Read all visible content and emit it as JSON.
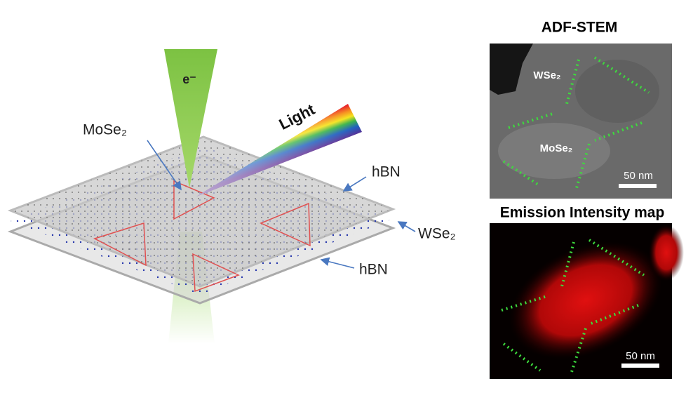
{
  "diagram": {
    "beam_label": "e⁻",
    "light_label": "Light",
    "labels": {
      "mose2": "MoSe₂",
      "hbn_top": "hBN",
      "wse2": "WSe₂",
      "hbn_bottom": "hBN"
    },
    "stem_panel": {
      "title": "ADF-STEM",
      "wse2": "WSe₂",
      "mose2": "MoSe₂",
      "scale": "50 nm"
    },
    "emission_panel": {
      "title": "Emission Intensity map",
      "scale": "50 nm"
    }
  }
}
